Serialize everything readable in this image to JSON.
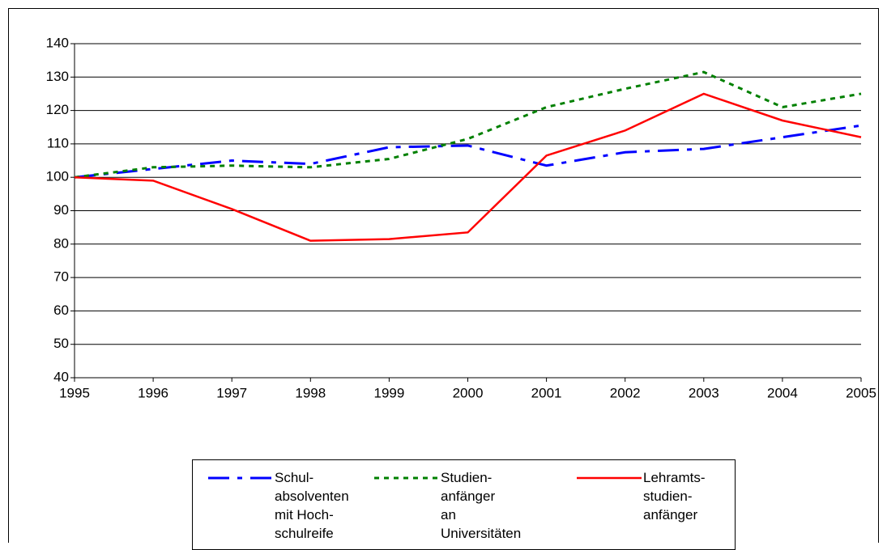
{
  "chart_data": {
    "type": "line",
    "x": [
      1995,
      1996,
      1997,
      1998,
      1999,
      2000,
      2001,
      2002,
      2003,
      2004,
      2005
    ],
    "xlim": [
      1995,
      2005
    ],
    "xticks": [
      1995,
      1996,
      1997,
      1998,
      1999,
      2000,
      2001,
      2002,
      2003,
      2004,
      2005
    ],
    "ylim": [
      40,
      140
    ],
    "yticks": [
      40,
      50,
      60,
      70,
      80,
      90,
      100,
      110,
      120,
      130,
      140
    ],
    "grid": true,
    "legend": "bottom",
    "series": [
      {
        "name": "Schul-\nabsolventen\nmit Hoch-\nschulreife",
        "color": "#0000ff",
        "style": "dashdot",
        "values": [
          100,
          102.5,
          105,
          104,
          109,
          109.5,
          103.5,
          107.5,
          108.5,
          112,
          115.5
        ]
      },
      {
        "name": "Studien-\nanfänger\nan Universitäten",
        "color": "#008000",
        "style": "dotted",
        "values": [
          100,
          103,
          103.5,
          103,
          105.5,
          111.5,
          121,
          126.5,
          131.5,
          121,
          125
        ]
      },
      {
        "name": "Lehramts-\nstudien-\nanfänger",
        "color": "#ff0000",
        "style": "solid",
        "values": [
          100,
          99,
          90.5,
          81,
          81.5,
          83.5,
          106.5,
          114,
          125,
          117,
          112
        ]
      }
    ]
  }
}
